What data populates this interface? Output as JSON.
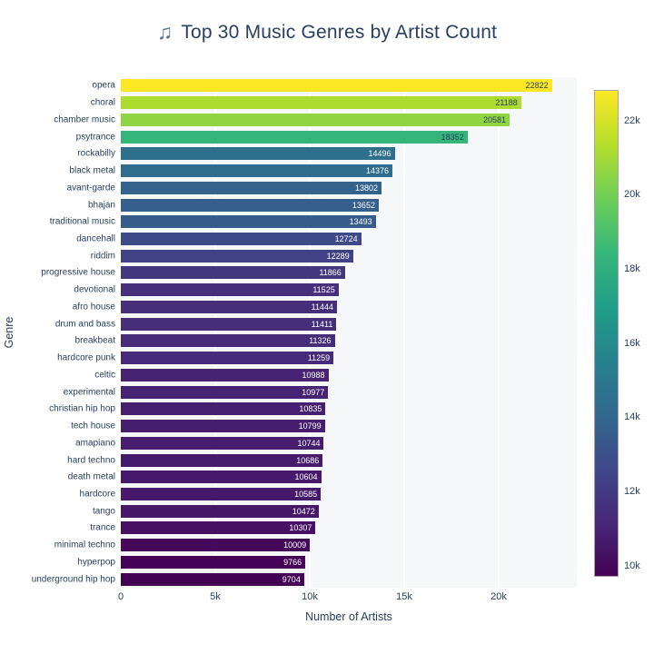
{
  "title": {
    "icon": "♫",
    "text": "Top 30 Music Genres by Artist Count"
  },
  "chart_data": {
    "type": "bar",
    "orientation": "horizontal",
    "title": "Top 30 Music Genres by Artist Count",
    "xlabel": "Number of Artists",
    "ylabel": "Genre",
    "xlim": [
      0,
      24135
    ],
    "grid": true,
    "categories": [
      "opera",
      "choral",
      "chamber music",
      "psytrance",
      "rockabilly",
      "black metal",
      "avant-garde",
      "bhajan",
      "traditional music",
      "dancehall",
      "riddim",
      "progressive house",
      "devotional",
      "afro house",
      "drum and bass",
      "breakbeat",
      "hardcore punk",
      "celtic",
      "experimental",
      "christian hip hop",
      "tech house",
      "amapiano",
      "hard techno",
      "death metal",
      "hardcore",
      "tango",
      "trance",
      "minimal techno",
      "hyperpop",
      "underground hip hop"
    ],
    "values": [
      22822,
      21188,
      20581,
      18352,
      14496,
      14376,
      13802,
      13652,
      13493,
      12724,
      12289,
      11866,
      11525,
      11444,
      11411,
      11326,
      11259,
      10988,
      10977,
      10835,
      10799,
      10744,
      10686,
      10604,
      10585,
      10472,
      10307,
      10009,
      9766,
      9704
    ],
    "x_ticks": [
      {
        "value": 0,
        "label": "0"
      },
      {
        "value": 5000,
        "label": "5k"
      },
      {
        "value": 10000,
        "label": "10k"
      },
      {
        "value": 15000,
        "label": "15k"
      },
      {
        "value": 20000,
        "label": "20k"
      }
    ],
    "colormap": "viridis",
    "viridis_stops": [
      "#440154",
      "#482878",
      "#3e4989",
      "#31688e",
      "#26828e",
      "#1f9e89",
      "#35b779",
      "#6ece58",
      "#b5de2b",
      "#fde725"
    ],
    "color_range": [
      9704,
      22822
    ],
    "colorbar_position": "right",
    "colorbar_ticks": [
      {
        "value": 10000,
        "label": "10k"
      },
      {
        "value": 12000,
        "label": "12k"
      },
      {
        "value": 14000,
        "label": "14k"
      },
      {
        "value": 16000,
        "label": "16k"
      },
      {
        "value": 18000,
        "label": "18k"
      },
      {
        "value": 20000,
        "label": "20k"
      },
      {
        "value": 22000,
        "label": "22k"
      }
    ]
  },
  "colors": {
    "text": "#2a3f5f",
    "title_icon": "#5a7183",
    "paper_bg": "#ffffff",
    "plot_bg": "#f6f7f8",
    "grid": "#ffffff",
    "colorbar_border": "#a6a6a6",
    "label_on_light": "#2a3f5f",
    "label_on_dark": "#ffffff"
  }
}
